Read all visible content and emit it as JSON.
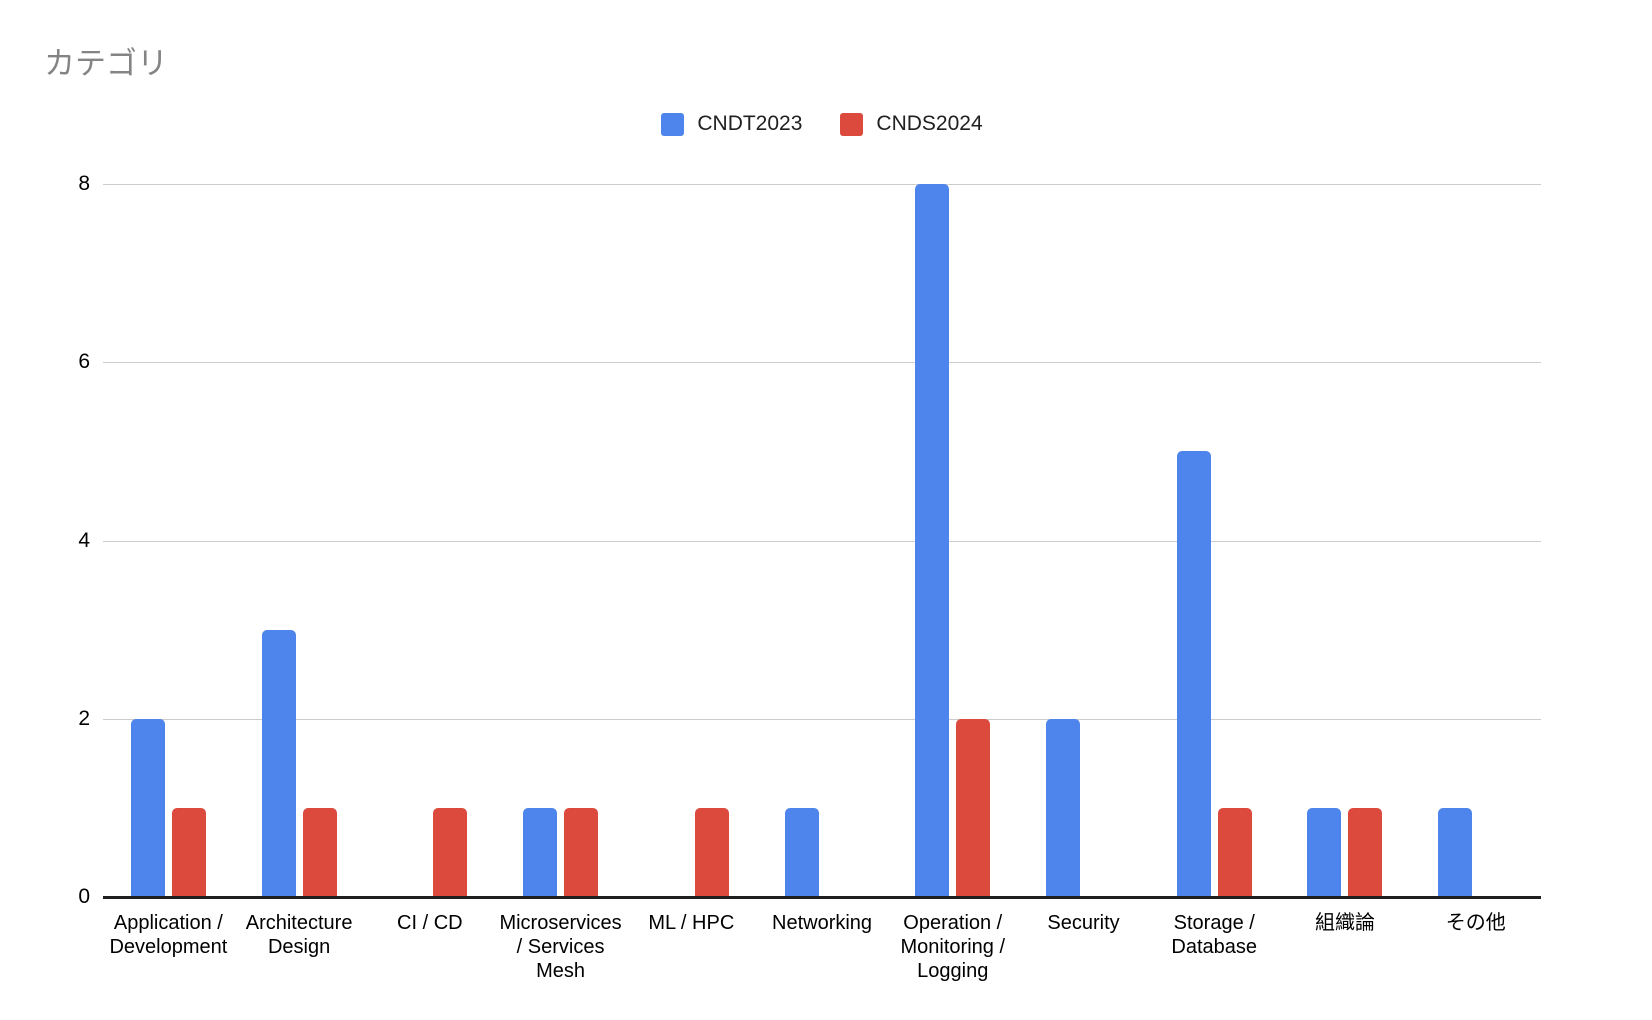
{
  "title": "カテゴリ",
  "legend": [
    {
      "label": "CNDT2023",
      "color": "#4d85ec"
    },
    {
      "label": "CNDS2024",
      "color": "#db4a3c"
    }
  ],
  "colors": {
    "series_blue": "#4d85ec",
    "series_red": "#db4a3c",
    "gridline": "#cccccc",
    "axis_line": "#1f1f1f",
    "title_text": "#848484",
    "label_text": "#000000"
  },
  "chart_data": {
    "type": "bar",
    "title": "カテゴリ",
    "xlabel": "",
    "ylabel": "",
    "ylim": [
      0,
      8
    ],
    "yticks": [
      0,
      2,
      4,
      6,
      8
    ],
    "grid": true,
    "legend_position": "top-center",
    "categories": [
      "Application /\nDevelopment",
      "Architecture\nDesign",
      "CI / CD",
      "Microservices\n/ Services\nMesh",
      "ML / HPC",
      "Networking",
      "Operation /\nMonitoring /\nLogging",
      "Security",
      "Storage /\nDatabase",
      "組織論",
      "その他"
    ],
    "series": [
      {
        "name": "CNDT2023",
        "color": "#4d85ec",
        "values": [
          2,
          3,
          0,
          1,
          0,
          1,
          8,
          2,
          5,
          1,
          1
        ]
      },
      {
        "name": "CNDS2024",
        "color": "#db4a3c",
        "values": [
          1,
          1,
          1,
          1,
          1,
          0,
          2,
          0,
          1,
          1,
          0
        ]
      }
    ]
  }
}
